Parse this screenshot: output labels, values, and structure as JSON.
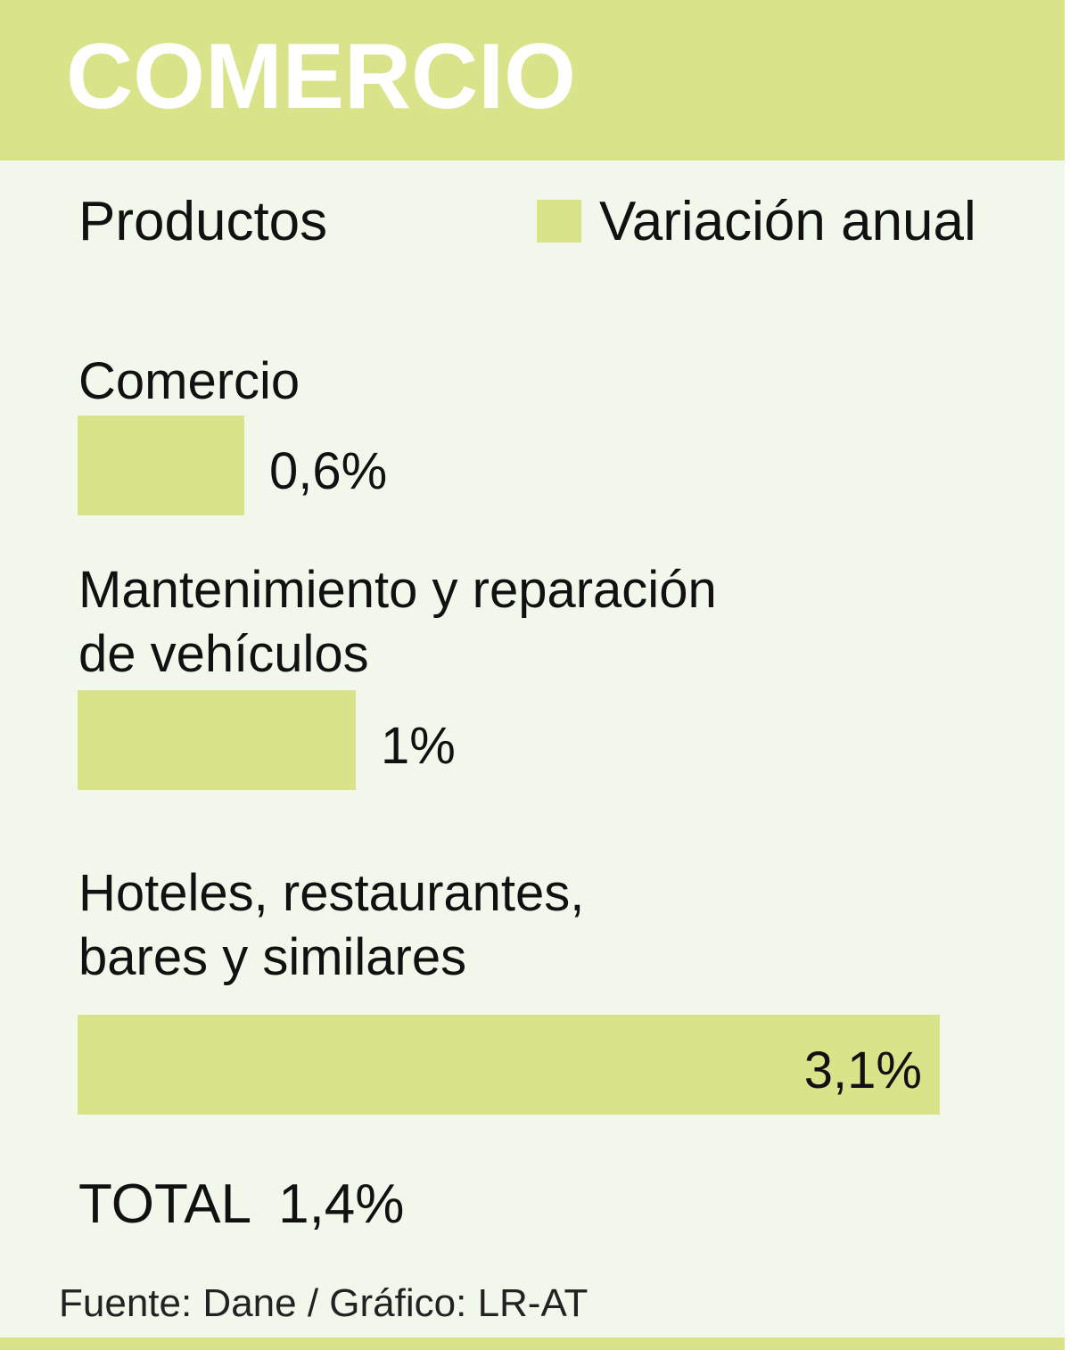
{
  "header": {
    "title": "COMERCIO"
  },
  "chart_data": {
    "type": "bar",
    "orientation": "horizontal",
    "title": "COMERCIO",
    "subtitle": "Productos",
    "legend": [
      "Variación anual"
    ],
    "categories": [
      "Comercio",
      "Mantenimiento y reparación\nde vehículos",
      "Hoteles, restaurantes,\nbares y similares"
    ],
    "series": [
      {
        "name": "Variación anual",
        "values": [
          0.6,
          1.0,
          3.1
        ]
      }
    ],
    "value_labels": [
      "0,6%",
      "1%",
      "3,1%"
    ],
    "unit": "%",
    "bar_color": "#d9e48a",
    "grid": false
  },
  "total": {
    "label": "TOTAL",
    "value": "1,4%"
  },
  "source": "Fuente: Dane / Gráfico: LR-AT"
}
